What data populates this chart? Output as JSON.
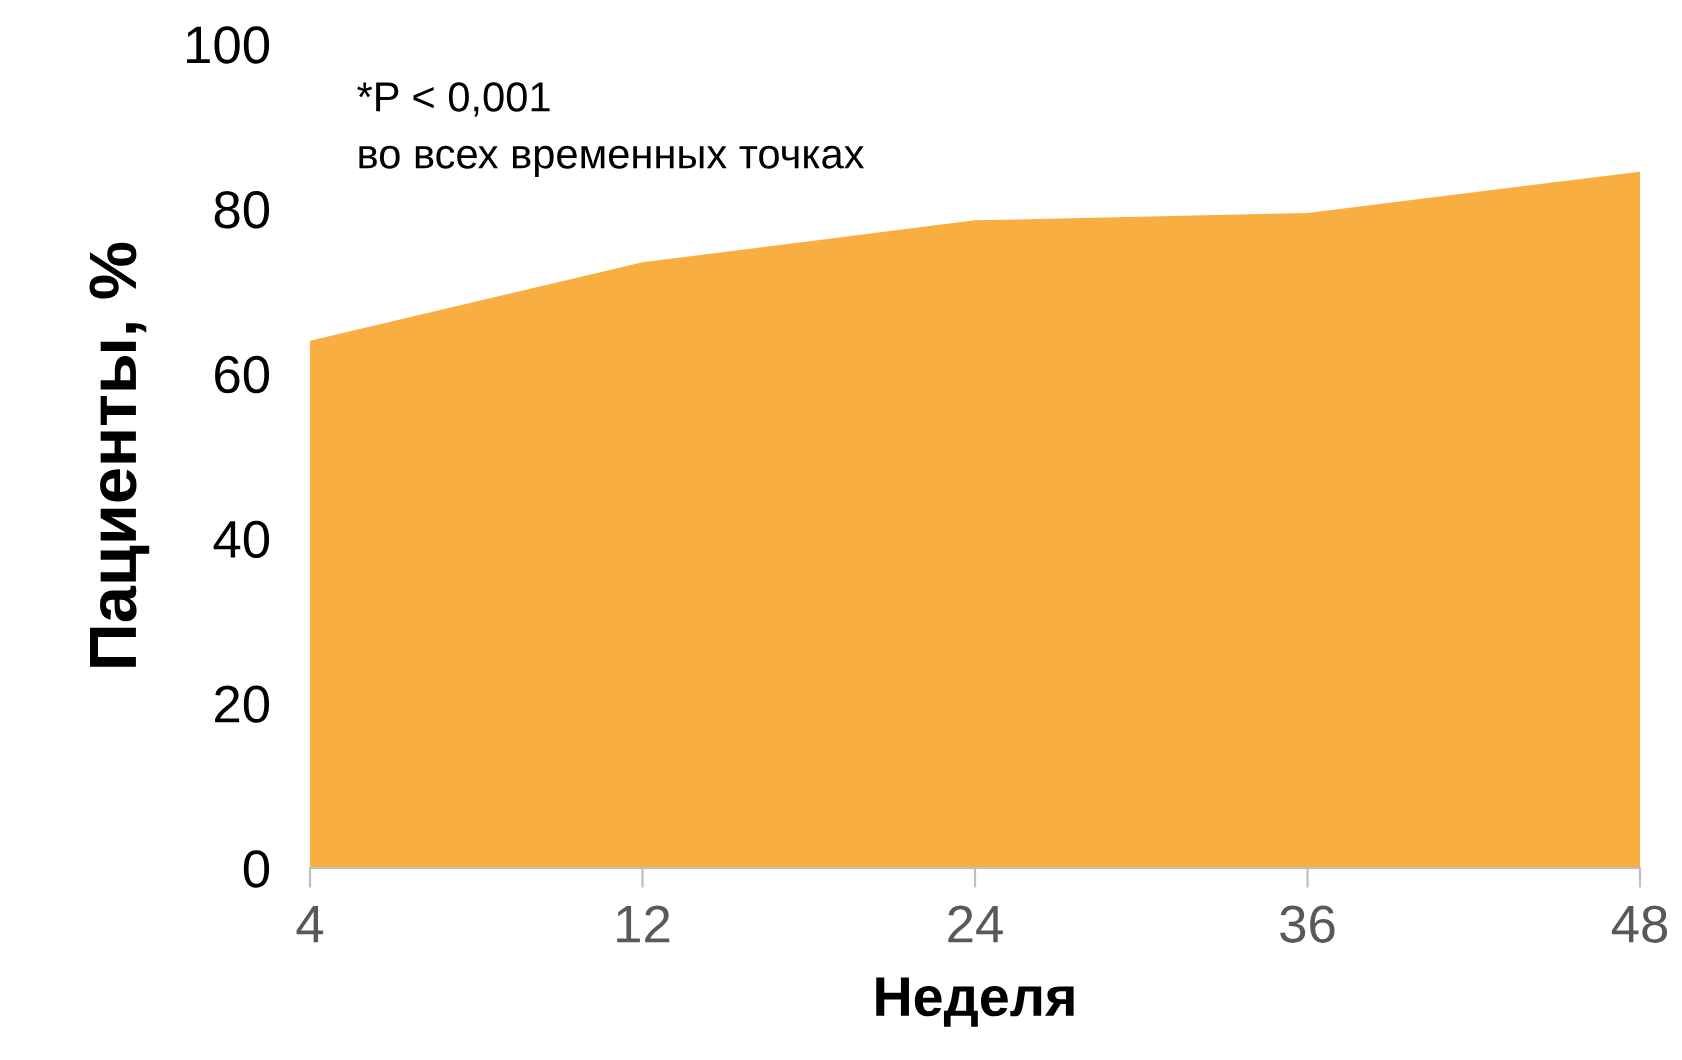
{
  "chart_data": {
    "type": "area",
    "xlabel": "Неделя",
    "ylabel": "Пациенты, %",
    "categories": [
      "4",
      "12",
      "24",
      "36",
      "48"
    ],
    "series": [
      {
        "color": "#f9ae42",
        "values": [
          64,
          73.5,
          78.6,
          79.5,
          84.5
        ]
      }
    ],
    "ylim": [
      0,
      100
    ],
    "yticks": [
      0,
      20,
      40,
      60,
      80,
      100
    ],
    "grid": false,
    "legend": false,
    "annotations": [
      "*P < 0,001\nво всех временных точках"
    ]
  }
}
